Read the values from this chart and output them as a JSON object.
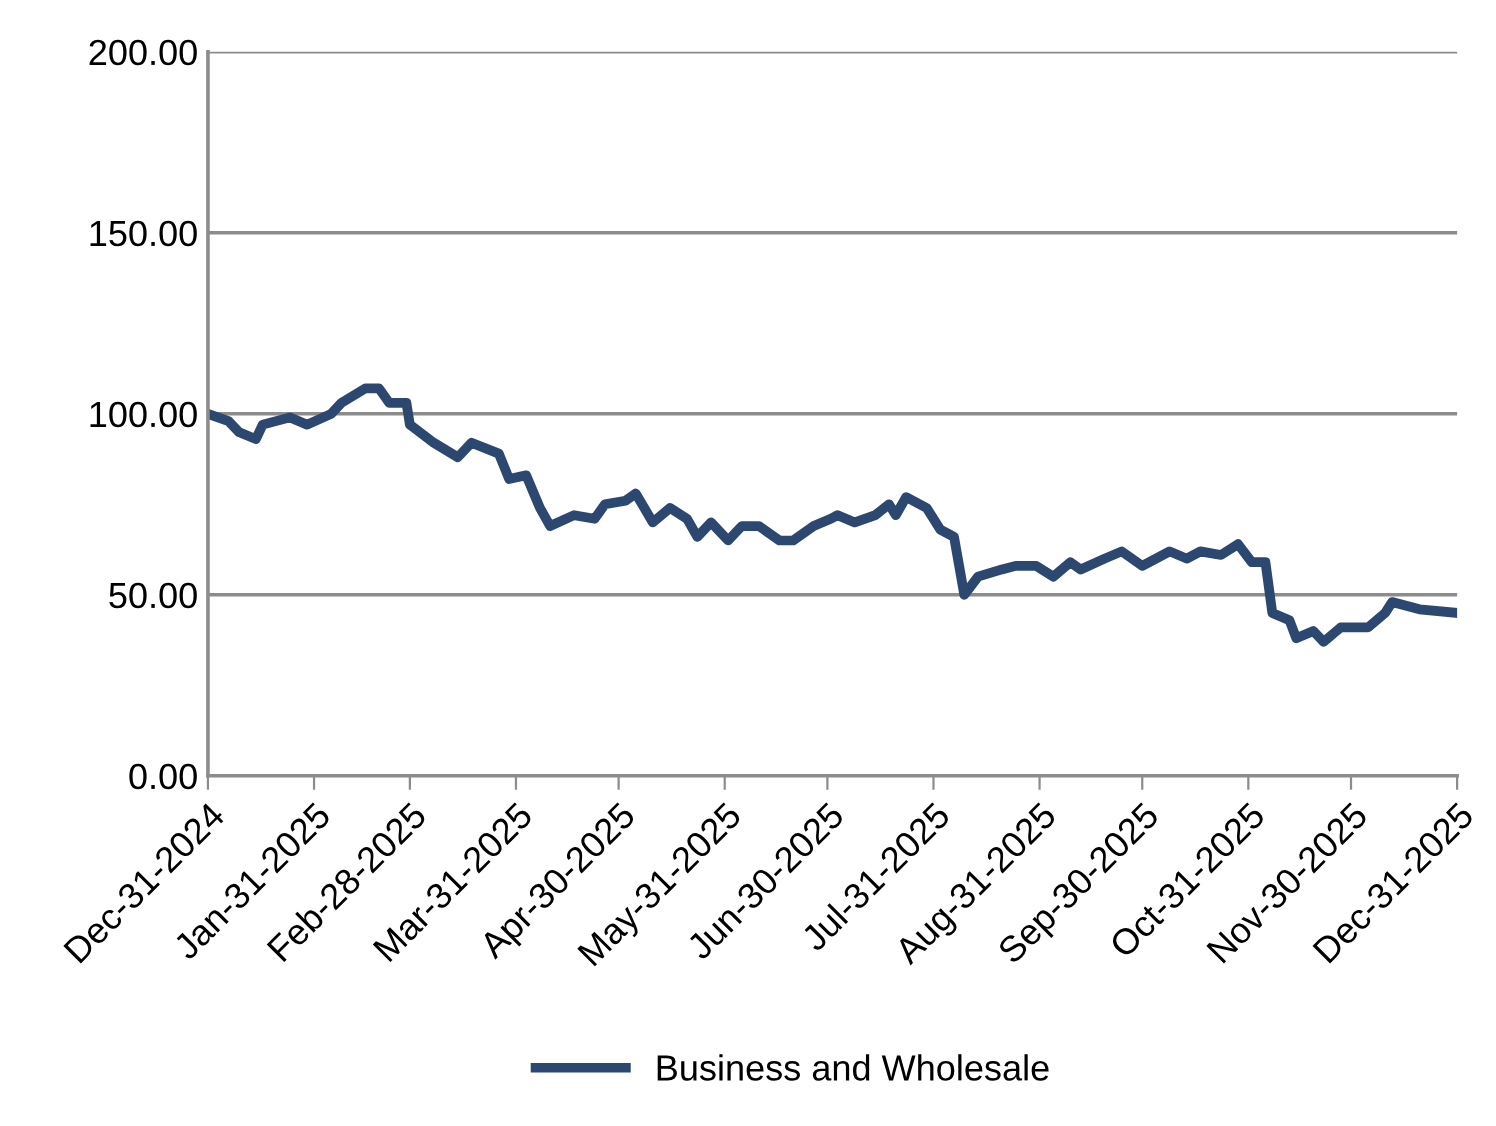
{
  "chart_data": {
    "type": "line",
    "legend": "bottom",
    "grid": "y",
    "marker": "none",
    "line_style": "solid",
    "ylim": [
      0,
      200
    ],
    "yticks": [
      {
        "value": 0,
        "label": "0.00"
      },
      {
        "value": 50,
        "label": "50.00"
      },
      {
        "value": 100,
        "label": "100.00"
      },
      {
        "value": 150,
        "label": "150.00"
      },
      {
        "value": 200,
        "label": "200.00"
      }
    ],
    "xlim": [
      "2024-12-31",
      "2025-12-31"
    ],
    "xticks": [
      {
        "value": "2024-12-31",
        "label": "Dec-31-2024"
      },
      {
        "value": "2025-01-31",
        "label": "Jan-31-2025"
      },
      {
        "value": "2025-02-28",
        "label": "Feb-28-2025"
      },
      {
        "value": "2025-03-31",
        "label": "Mar-31-2025"
      },
      {
        "value": "2025-04-30",
        "label": "Apr-30-2025"
      },
      {
        "value": "2025-05-31",
        "label": "May-31-2025"
      },
      {
        "value": "2025-06-30",
        "label": "Jun-30-2025"
      },
      {
        "value": "2025-07-31",
        "label": "Jul-31-2025"
      },
      {
        "value": "2025-08-31",
        "label": "Aug-31-2025"
      },
      {
        "value": "2025-09-30",
        "label": "Sep-30-2025"
      },
      {
        "value": "2025-10-31",
        "label": "Oct-31-2025"
      },
      {
        "value": "2025-11-30",
        "label": "Nov-30-2025"
      },
      {
        "value": "2025-12-31",
        "label": "Dec-31-2025"
      }
    ],
    "x": [
      "2024-12-31",
      "2025-01-06",
      "2025-01-09",
      "2025-01-14",
      "2025-01-16",
      "2025-01-24",
      "2025-01-29",
      "2025-02-05",
      "2025-02-08",
      "2025-02-15",
      "2025-02-19",
      "2025-02-22",
      "2025-02-27",
      "2025-02-28",
      "2025-03-07",
      "2025-03-14",
      "2025-03-18",
      "2025-03-26",
      "2025-03-29",
      "2025-04-03",
      "2025-04-07",
      "2025-04-10",
      "2025-04-17",
      "2025-04-23",
      "2025-04-26",
      "2025-05-02",
      "2025-05-05",
      "2025-05-10",
      "2025-05-15",
      "2025-05-20",
      "2025-05-23",
      "2025-05-27",
      "2025-06-01",
      "2025-06-05",
      "2025-06-10",
      "2025-06-16",
      "2025-06-20",
      "2025-06-26",
      "2025-07-01",
      "2025-07-03",
      "2025-07-08",
      "2025-07-14",
      "2025-07-18",
      "2025-07-20",
      "2025-07-23",
      "2025-07-29",
      "2025-08-02",
      "2025-08-06",
      "2025-08-09",
      "2025-08-13",
      "2025-08-20",
      "2025-08-24",
      "2025-08-30",
      "2025-09-04",
      "2025-09-09",
      "2025-09-12",
      "2025-09-19",
      "2025-09-24",
      "2025-09-30",
      "2025-10-08",
      "2025-10-13",
      "2025-10-17",
      "2025-10-23",
      "2025-10-28",
      "2025-11-01",
      "2025-11-05",
      "2025-11-07",
      "2025-11-12",
      "2025-11-14",
      "2025-11-19",
      "2025-11-22",
      "2025-11-27",
      "2025-12-05",
      "2025-12-10",
      "2025-12-12",
      "2025-12-20",
      "2025-12-31"
    ],
    "series": [
      {
        "name": "Business and Wholesale",
        "color": "#2c4770",
        "values": [
          100,
          98,
          95,
          93,
          97,
          99,
          97,
          100,
          103,
          107,
          107,
          103,
          103,
          97,
          92,
          88,
          92,
          89,
          82,
          83,
          74,
          69,
          72,
          71,
          75,
          76,
          78,
          70,
          74,
          71,
          66,
          70,
          65,
          69,
          69,
          65,
          65,
          69,
          71,
          72,
          70,
          72,
          75,
          72,
          77,
          74,
          68,
          66,
          50,
          55,
          57,
          58,
          58,
          55,
          59,
          57,
          60,
          62,
          58,
          62,
          60,
          62,
          61,
          64,
          59,
          59,
          45,
          43,
          38,
          40,
          37,
          41,
          41,
          45,
          48,
          46,
          45
        ]
      }
    ]
  }
}
